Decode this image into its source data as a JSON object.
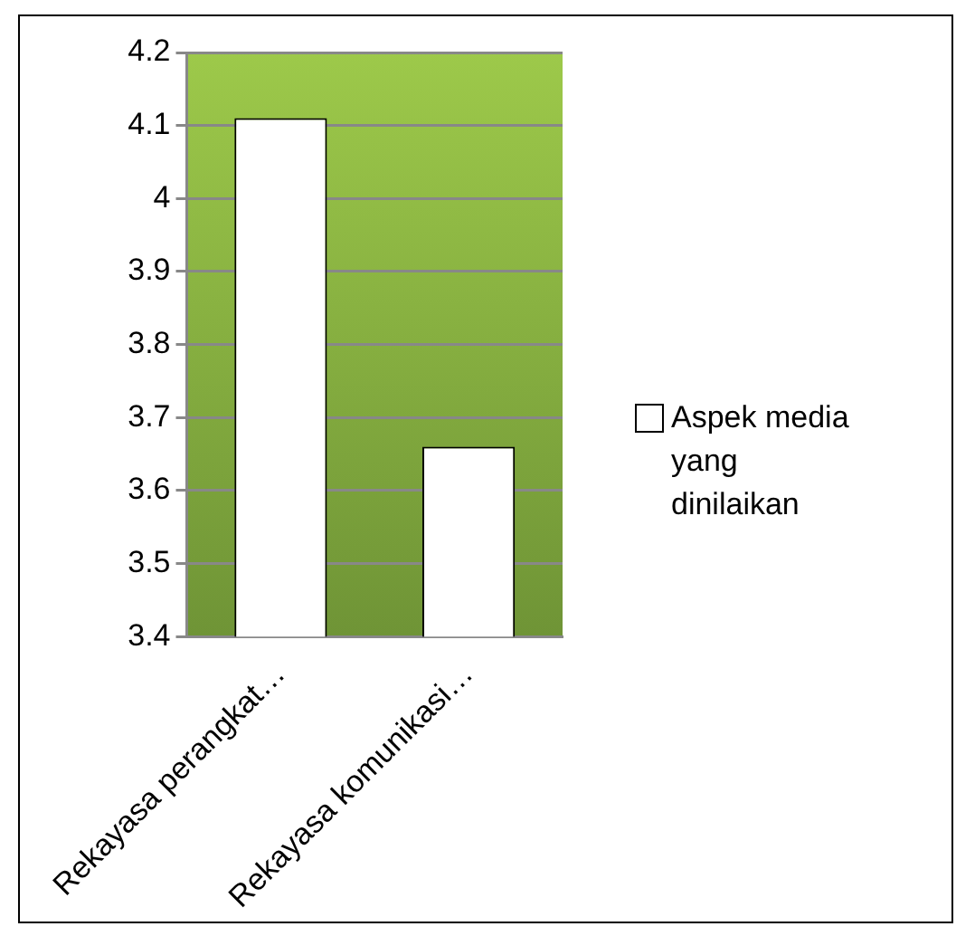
{
  "chart_data": {
    "type": "bar",
    "categories": [
      "Rekayasa perangkat…",
      "Rekayasa komunikasi…"
    ],
    "series": [
      {
        "name": "Aspek media yang dinilaikan",
        "color": "#ffffff",
        "values": [
          4.11,
          3.66
        ]
      }
    ],
    "ylim": [
      3.4,
      4.2
    ],
    "yticks": [
      3.4,
      3.5,
      3.6,
      3.7,
      3.8,
      3.9,
      4,
      4.1,
      4.2
    ],
    "grid": "y",
    "legend": "right"
  }
}
